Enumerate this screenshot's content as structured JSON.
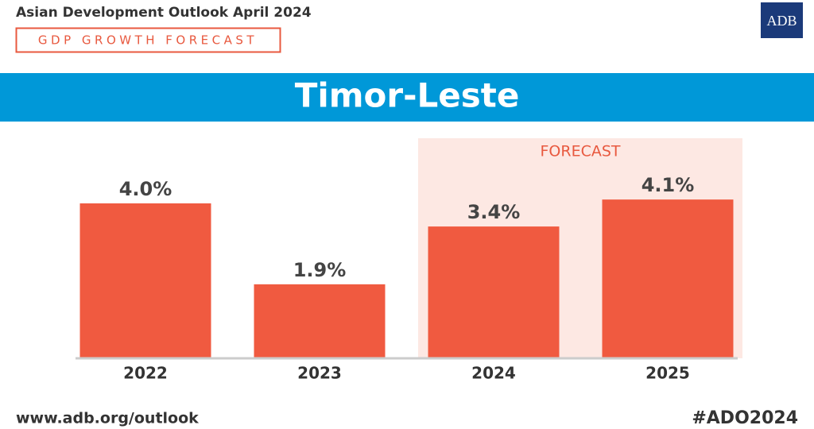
{
  "header": {
    "publication": "Asian Development Outlook April 2024",
    "subtitle": "GDP GROWTH FORECAST",
    "logo": "ADB"
  },
  "chart_data": {
    "type": "bar",
    "title": "Timor-Leste",
    "annotation": "FORECAST",
    "categories": [
      "2022",
      "2023",
      "2024",
      "2025"
    ],
    "values": [
      4.0,
      1.9,
      3.4,
      4.1
    ],
    "value_labels": [
      "4.0%",
      "1.9%",
      "3.4%",
      "4.1%"
    ],
    "color": "#f05a40"
  },
  "footer": {
    "url": "www.adb.org/outlook",
    "hashtag": "#ADO2024"
  }
}
